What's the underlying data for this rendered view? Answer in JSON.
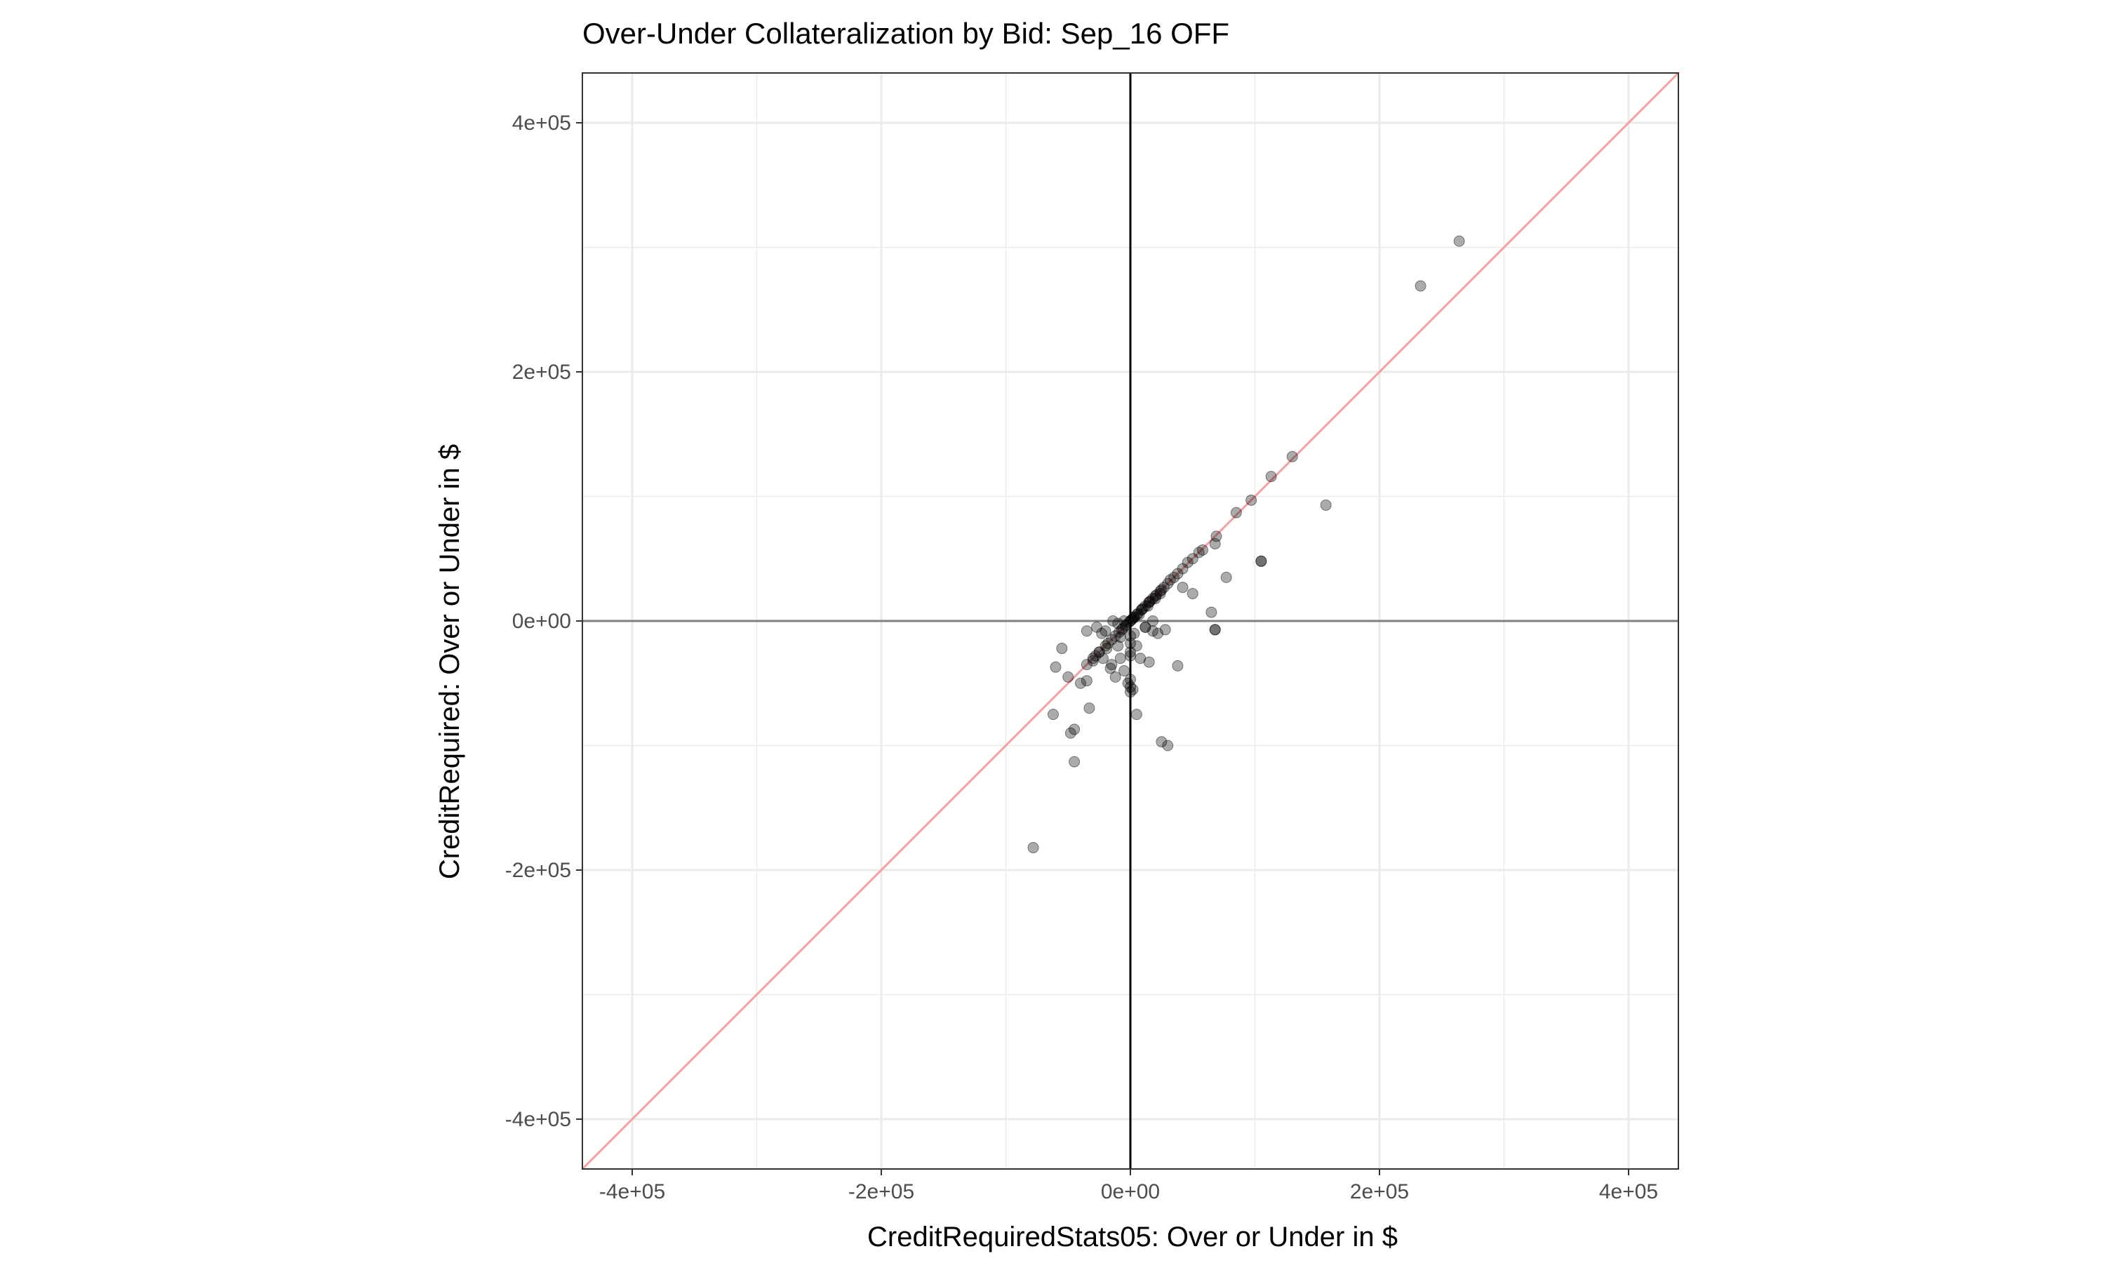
{
  "chart_data": {
    "type": "scatter",
    "title": "Over-Under Collateralization by Bid: Sep_16 OFF",
    "xlabel": "CreditRequiredStats05: Over or Under in $",
    "ylabel": "CreditRequired: Over or Under in $",
    "xlim": [
      -440000,
      440000
    ],
    "ylim": [
      -440000,
      440000
    ],
    "x_ticks": [
      -400000,
      -200000,
      0,
      200000,
      400000
    ],
    "x_tick_labels": [
      "-4e+05",
      "-2e+05",
      "0e+00",
      "2e+05",
      "4e+05"
    ],
    "y_ticks": [
      -400000,
      -200000,
      0,
      200000,
      400000
    ],
    "y_tick_labels": [
      "-4e+05",
      "-2e+05",
      "0e+00",
      "2e+05",
      "4e+05"
    ],
    "grid": true,
    "reference_lines": {
      "vertical_x": 0,
      "horizontal_y": 0,
      "diagonal": "y = x"
    },
    "colors": {
      "points": "#000000",
      "diagonal": "#f8a0a0",
      "zero_vertical": "#000000",
      "zero_horizontal": "#808080",
      "grid": "#ebebeb"
    },
    "series": [
      {
        "x": [
          264000,
          233000,
          130000,
          113000,
          97000,
          85000,
          157000,
          77000,
          69000,
          68000,
          58000,
          55000,
          50000,
          46000,
          42000,
          38000,
          35000,
          30000,
          27000,
          24000,
          21000,
          18000,
          15000,
          12000,
          9000,
          6000,
          3000,
          105000,
          105000,
          68000,
          68000,
          65000,
          50000,
          42000,
          38000,
          32000,
          25000,
          20000,
          15000,
          10000,
          5000,
          2000,
          0,
          -3000,
          -6000,
          -9000,
          -12000,
          -15000,
          -18000,
          -20000,
          -25000,
          -28000,
          -30000,
          -35000,
          -5000,
          -10000,
          -14000,
          -20000,
          -23000,
          -27000,
          0,
          0,
          0,
          3000,
          5000,
          8000,
          12000,
          15000,
          18000,
          25000,
          30000,
          -2000,
          -5000,
          -8000,
          -10000,
          -12000,
          -16000,
          -19000,
          -22000,
          -25000,
          -30000,
          -40000,
          -55000,
          -60000,
          -35000,
          -33000,
          -45000,
          -48000,
          -35000,
          -62000,
          -50000,
          -45000,
          -78000,
          22000,
          28000,
          5000,
          2000,
          -15000,
          -8000,
          12000,
          18000,
          7000,
          3000,
          1000,
          -1000,
          -4000,
          -7000,
          16000,
          20000,
          24000,
          9000,
          14000,
          0,
          0,
          0,
          0
        ],
        "y": [
          305000,
          269000,
          132000,
          116000,
          97000,
          87000,
          93000,
          35000,
          68000,
          62000,
          57000,
          55000,
          50000,
          47000,
          42000,
          38000,
          35000,
          30000,
          27000,
          24000,
          21000,
          18000,
          15000,
          12000,
          9000,
          6000,
          3000,
          48000,
          48000,
          -7000,
          -7000,
          7000,
          22000,
          27000,
          -36000,
          33000,
          25000,
          20000,
          15000,
          10000,
          5000,
          2000,
          0,
          -3000,
          -6000,
          -9000,
          -12000,
          -15000,
          -18000,
          -20000,
          -25000,
          -28000,
          -30000,
          -35000,
          0,
          -2000,
          0,
          -8000,
          -10000,
          -5000,
          -25000,
          -47000,
          -57000,
          -10000,
          -20000,
          -30000,
          -5000,
          -33000,
          -8000,
          -97000,
          -100000,
          -50000,
          -40000,
          -30000,
          -20000,
          -45000,
          -38000,
          -22000,
          -30000,
          -25000,
          -32000,
          -50000,
          -22000,
          -37000,
          -48000,
          -70000,
          -87000,
          -90000,
          -8000,
          -75000,
          -45000,
          -113000,
          -182000,
          -10000,
          -7000,
          -75000,
          -55000,
          -35000,
          -13000,
          -5000,
          0,
          5000,
          3000,
          1000,
          -1000,
          -4000,
          -7000,
          16000,
          18000,
          22000,
          9000,
          12000,
          -12000,
          -18000,
          -28000,
          -53000
        ]
      }
    ]
  }
}
